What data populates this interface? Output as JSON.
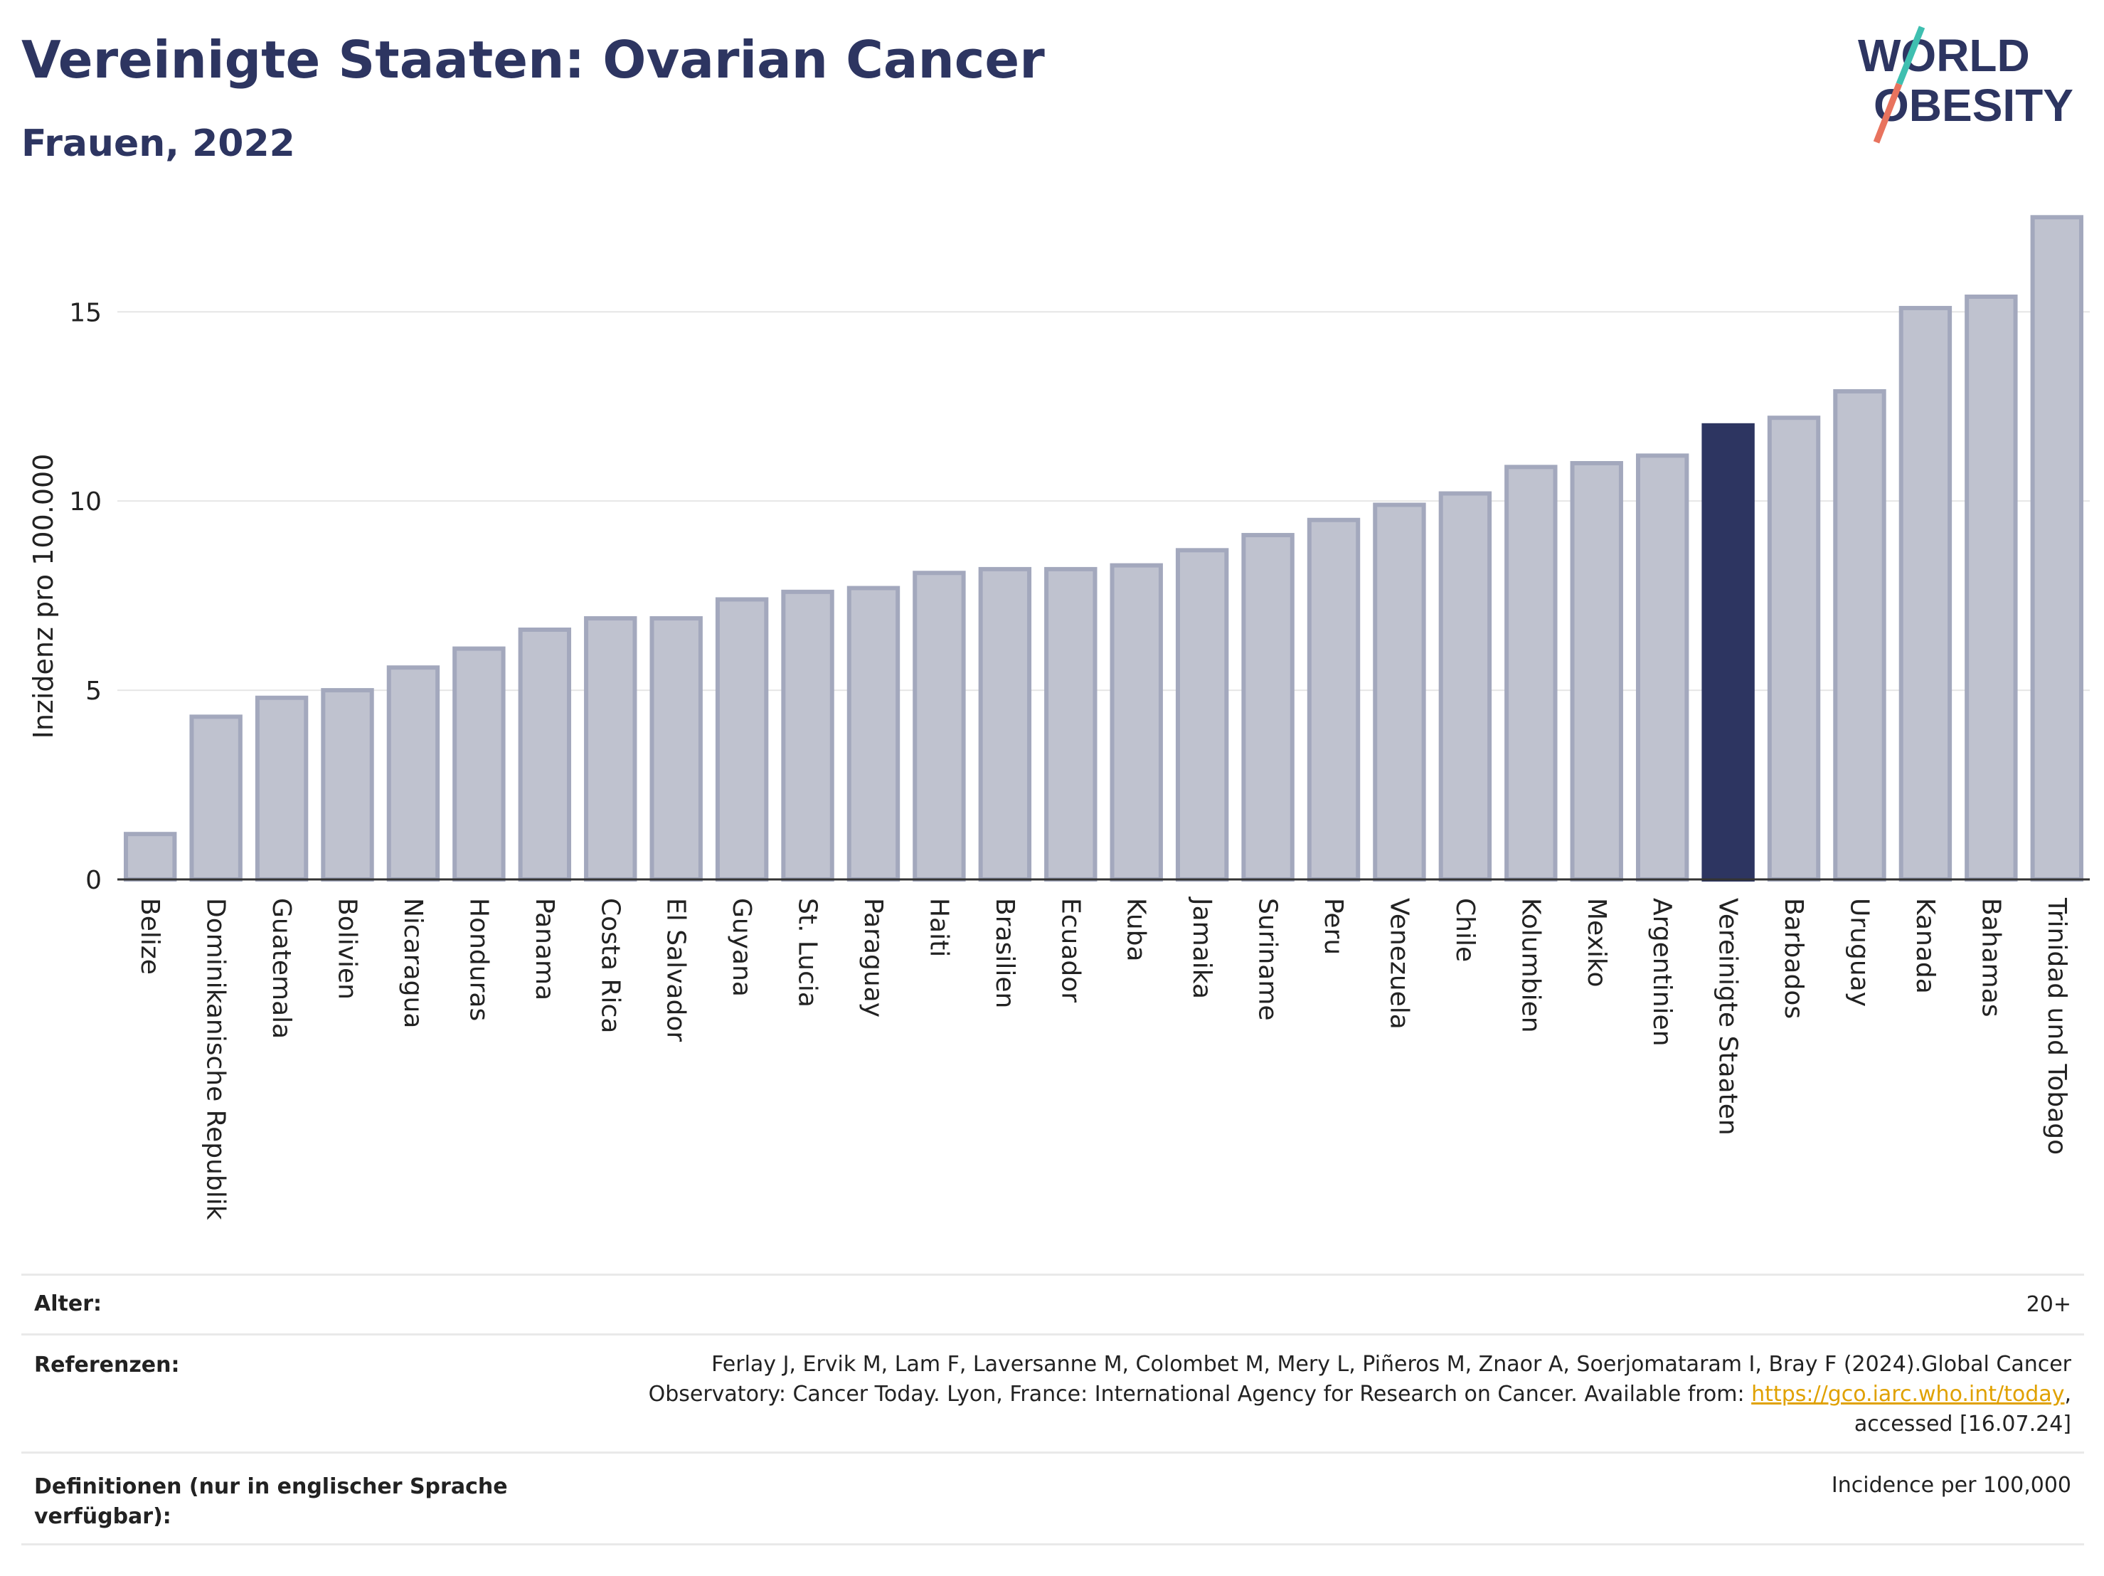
{
  "header": {
    "title": "Vereinigte Staaten: Ovarian Cancer",
    "subtitle": "Frauen, 2022"
  },
  "logo": {
    "line1": "WORLD",
    "line2": "OBESITY"
  },
  "colors": {
    "title": "#2d3561",
    "bar": "#bfc2cf",
    "bar_border": "#a3a8bd",
    "highlight": "#2d3561",
    "logo_slash_top": "#3fbfb0",
    "logo_slash_bottom": "#e8735e"
  },
  "chart_data": {
    "type": "bar",
    "ylabel": "Inzidenz pro 100.000",
    "xlabel": "",
    "ylim": [
      0,
      17.6
    ],
    "yticks": [
      0,
      5,
      10,
      15
    ],
    "grid": true,
    "highlight": "Vereinigte Staaten",
    "categories": [
      "Belize",
      "Dominikanische Republik",
      "Guatemala",
      "Bolivien",
      "Nicaragua",
      "Honduras",
      "Panama",
      "Costa Rica",
      "El Salvador",
      "Guyana",
      "St. Lucia",
      "Paraguay",
      "Haiti",
      "Brasilien",
      "Ecuador",
      "Kuba",
      "Jamaika",
      "Suriname",
      "Peru",
      "Venezuela",
      "Chile",
      "Kolumbien",
      "Mexiko",
      "Argentinien",
      "Vereinigte Staaten",
      "Barbados",
      "Uruguay",
      "Kanada",
      "Bahamas",
      "Trinidad und Tobago"
    ],
    "values": [
      1.2,
      4.3,
      4.8,
      5.0,
      5.6,
      6.1,
      6.6,
      6.9,
      6.9,
      7.4,
      7.6,
      7.7,
      8.1,
      8.2,
      8.2,
      8.3,
      8.7,
      9.1,
      9.5,
      9.9,
      10.2,
      10.9,
      11.0,
      11.2,
      12.0,
      12.2,
      12.9,
      15.1,
      15.4,
      17.5
    ]
  },
  "footer": {
    "age_label": "Alter:",
    "age_value": "20+",
    "ref_label": "Referenzen:",
    "ref_line1": "Ferlay J, Ervik M, Lam F, Laversanne M, Colombet M, Mery L, Piñeros M, Znaor A, Soerjomataram I, Bray F (2024).Global Cancer",
    "ref_line2_pre": "Observatory: Cancer Today. Lyon, France: International Agency for Research on Cancer. Available from: ",
    "ref_link": "https://gco.iarc.who.int/today",
    "ref_line2_post": ",",
    "ref_line3": "accessed [16.07.24]",
    "def_label_line1": "Definitionen (nur in englischer Sprache",
    "def_label_line2": "verfügbar):",
    "def_value": "Incidence per 100,000"
  }
}
